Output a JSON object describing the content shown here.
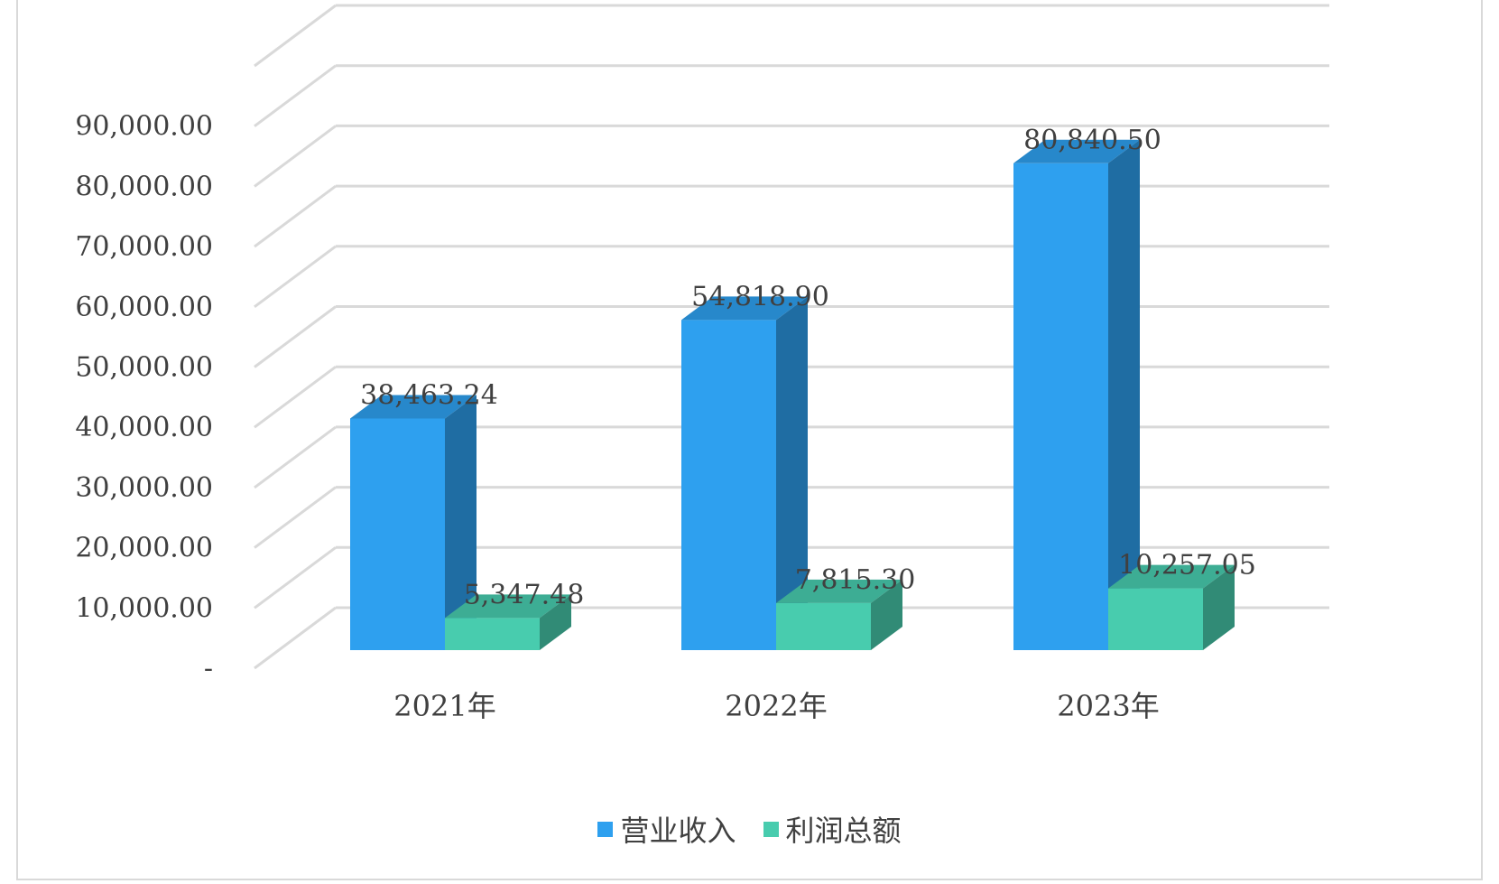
{
  "chart_data": {
    "type": "bar",
    "categories": [
      "2021年",
      "2022年",
      "2023年"
    ],
    "series": [
      {
        "name": "营业收入",
        "values": [
          38463.24,
          54818.9,
          80840.5
        ],
        "labels": [
          "38,463.24",
          "54,818.90",
          "80,840.50"
        ],
        "color": "#2ea0ef"
      },
      {
        "name": "利润总额",
        "values": [
          5347.48,
          7815.3,
          10257.05
        ],
        "labels": [
          "5,347.48",
          "7,815.30",
          "10,257.05"
        ],
        "color": "#48ccae"
      }
    ],
    "yticks": [
      0,
      10000,
      20000,
      30000,
      40000,
      50000,
      60000,
      70000,
      80000,
      90000
    ],
    "ytick_labels": [
      "-",
      "10,000.00",
      "20,000.00",
      "30,000.00",
      "40,000.00",
      "50,000.00",
      "60,000.00",
      "70,000.00",
      "80,000.00",
      "90,000.00"
    ],
    "ylim": [
      0,
      100000
    ],
    "title": "",
    "xlabel": "",
    "ylabel": "",
    "grid": true,
    "legend_position": "bottom",
    "style": "3d-column"
  }
}
